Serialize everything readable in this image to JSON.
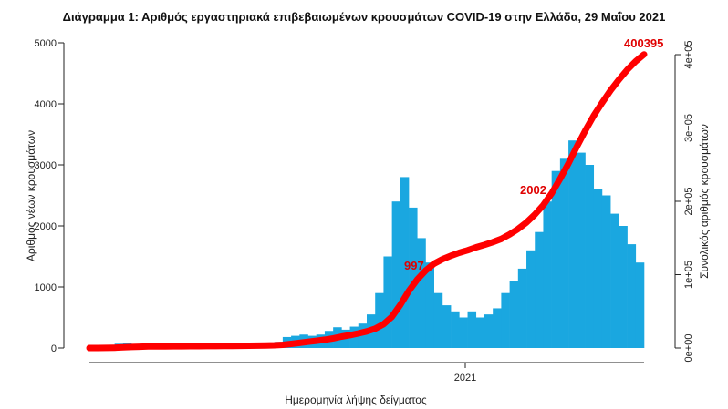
{
  "chart_data": {
    "type": "bar+line",
    "title": "Διάγραμμα 1: Αριθμός εργαστηριακά επιβεβαιωμένων κρουσμάτων COVID-19 στην Ελλάδα, 29 Μαΐου 2021",
    "xlabel": "Ημερομηνία λήψης δείγματος",
    "ylabel": "Αριθμός νέων κρουσμάτων",
    "y2label": "Συνολικός αριθμός κρουσμάτων",
    "ylim": [
      0,
      5000
    ],
    "y2lim": [
      0,
      400000
    ],
    "yticks": [
      "0",
      "1000",
      "2000",
      "3000",
      "4000",
      "5000"
    ],
    "y2ticks": [
      "0e+00",
      "1e+05",
      "2e+05",
      "3e+05",
      "4e+05"
    ],
    "xticks": [
      "2021"
    ],
    "x_start": "2020-02-26",
    "x_end": "2021-05-29",
    "bar_color": "#1aa7e0",
    "line_color": "#ff0000",
    "series": [
      {
        "type": "bar",
        "resolution": "weekly average of daily cases",
        "values": [
          1,
          15,
          40,
          70,
          80,
          60,
          40,
          15,
          15,
          12,
          10,
          10,
          8,
          5,
          10,
          15,
          20,
          10,
          20,
          30,
          30,
          35,
          100,
          180,
          200,
          220,
          200,
          220,
          280,
          340,
          300,
          350,
          400,
          550,
          900,
          1500,
          2400,
          2800,
          2300,
          1800,
          1400,
          900,
          700,
          600,
          500,
          600,
          500,
          550,
          650,
          900,
          1100,
          1300,
          1600,
          1900,
          2400,
          2900,
          3100,
          3400,
          3200,
          3000,
          2600,
          2500,
          2200,
          2000,
          1700,
          1400
        ]
      },
      {
        "type": "line",
        "cumulative": true,
        "final_value": 400395
      }
    ],
    "annotations": [
      "997",
      "2002",
      "400395"
    ]
  }
}
